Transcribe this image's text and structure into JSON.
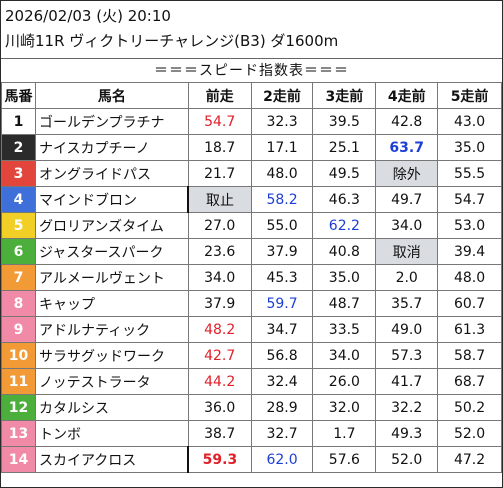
{
  "header": {
    "line1": "2026/02/03 (火) 20:10",
    "line2": "川崎11R ヴィクトリーチャレンジ(B3) ダ1600m"
  },
  "banner": "＝＝＝スピード指数表＝＝＝",
  "columns": [
    "馬番",
    "馬名",
    "前走",
    "2走前",
    "3走前",
    "4走前",
    "5走前"
  ],
  "rows": [
    {
      "num": "1",
      "name": "ゴールデンプラチナ",
      "cells": [
        "54.7",
        "32.3",
        "39.5",
        "42.8",
        "43.0"
      ]
    },
    {
      "num": "2",
      "name": "ナイスカプチーノ",
      "cells": [
        "18.7",
        "17.1",
        "25.1",
        "63.7",
        "35.0"
      ]
    },
    {
      "num": "3",
      "name": "オングライドパス",
      "cells": [
        "21.7",
        "48.0",
        "49.5",
        "除外",
        "55.5"
      ]
    },
    {
      "num": "4",
      "name": "マインドブロン",
      "cells": [
        "取止",
        "58.2",
        "46.3",
        "49.7",
        "54.7"
      ]
    },
    {
      "num": "5",
      "name": "グロリアンズタイム",
      "cells": [
        "27.0",
        "55.0",
        "62.2",
        "34.0",
        "53.0"
      ]
    },
    {
      "num": "6",
      "name": "ジャスタースパーク",
      "cells": [
        "23.6",
        "37.9",
        "40.8",
        "取消",
        "39.4"
      ]
    },
    {
      "num": "7",
      "name": "アルメールヴェント",
      "cells": [
        "34.0",
        "45.3",
        "35.0",
        "2.0",
        "48.0"
      ]
    },
    {
      "num": "8",
      "name": "キャップ",
      "cells": [
        "37.9",
        "59.7",
        "48.7",
        "35.7",
        "60.7"
      ]
    },
    {
      "num": "9",
      "name": "アドルナティック",
      "cells": [
        "48.2",
        "34.7",
        "33.5",
        "49.0",
        "61.3"
      ]
    },
    {
      "num": "10",
      "name": "サラサグッドワーク",
      "cells": [
        "42.7",
        "56.8",
        "34.0",
        "57.3",
        "58.7"
      ]
    },
    {
      "num": "11",
      "name": "ノッテストラータ",
      "cells": [
        "44.2",
        "32.4",
        "26.0",
        "41.7",
        "68.7"
      ]
    },
    {
      "num": "12",
      "name": "カタルシス",
      "cells": [
        "36.0",
        "28.9",
        "32.0",
        "32.2",
        "50.2"
      ]
    },
    {
      "num": "13",
      "name": "トンボ",
      "cells": [
        "38.7",
        "32.7",
        "1.7",
        "49.3",
        "52.0"
      ]
    },
    {
      "num": "14",
      "name": "スカイアクロス",
      "cells": [
        "59.3",
        "62.0",
        "57.6",
        "52.0",
        "47.2"
      ]
    }
  ],
  "colors": {
    "waku_white": "#ffffff",
    "waku_black": "#2b2b2b",
    "waku_red": "#e2453c",
    "waku_blue": "#3f6fd8",
    "waku_yellow": "#f2cf27",
    "waku_green": "#4caf3c",
    "waku_orange": "#f29a36",
    "waku_pink": "#f08aa6",
    "highlight_red": "#e0202a",
    "highlight_blue": "#1d3fd6",
    "status_gray": "#d9dde2"
  }
}
